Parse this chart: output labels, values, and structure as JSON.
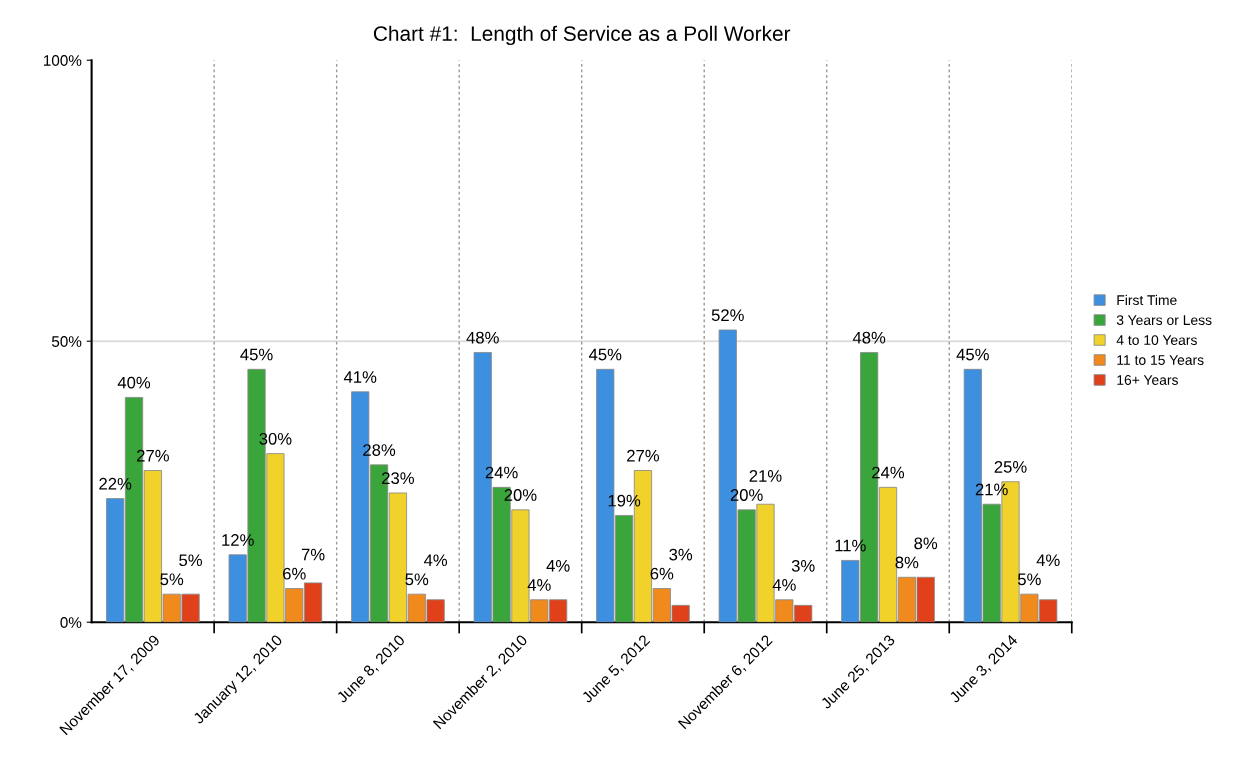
{
  "chart_data": {
    "type": "bar",
    "title": "Chart #1:  Length of Service as a Poll Worker",
    "categories": [
      "November 17, 2009",
      "January 12, 2010",
      "June 8, 2010",
      "November 2, 2010",
      "June 5, 2012",
      "November 6, 2012",
      "June 25, 2013",
      "June 3, 2014"
    ],
    "series": [
      {
        "name": "First Time",
        "color": "#3d8fe0",
        "values": [
          22,
          12,
          41,
          48,
          45,
          52,
          11,
          45
        ],
        "value_labels": [
          "22%",
          "12%",
          "41%",
          "48%",
          "45%",
          "52%",
          "11%",
          "45%"
        ]
      },
      {
        "name": "3 Years or Less",
        "color": "#3aa53a",
        "values": [
          40,
          45,
          28,
          24,
          19,
          20,
          48,
          21
        ],
        "value_labels": [
          "40%",
          "45%",
          "28%",
          "24%",
          "19%",
          "20%",
          "48%",
          "21%"
        ]
      },
      {
        "name": "4 to 10 Years",
        "color": "#f0d22a",
        "values": [
          27,
          30,
          23,
          20,
          27,
          21,
          24,
          25
        ],
        "value_labels": [
          "27%",
          "30%",
          "23%",
          "20%",
          "27%",
          "21%",
          "24%",
          "25%"
        ]
      },
      {
        "name": "11 to 15 Years",
        "color": "#f08a1c",
        "values": [
          5,
          6,
          5,
          4,
          6,
          4,
          8,
          5
        ],
        "value_labels": [
          "5%",
          "6%",
          "5%",
          "4%",
          "6%",
          "4%",
          "8%",
          "5%"
        ]
      },
      {
        "name": "16+ Years",
        "color": "#e0401a",
        "values": [
          5,
          7,
          4,
          4,
          3,
          3,
          8,
          4
        ],
        "value_labels": [
          "5%",
          "7%",
          "4%",
          "4%",
          "3%",
          "3%",
          "8%",
          "4%"
        ]
      }
    ],
    "ylim": [
      0,
      100
    ],
    "yticks": [
      {
        "value": 0,
        "label": "0%"
      },
      {
        "value": 50,
        "label": "50%"
      },
      {
        "value": 100,
        "label": "100%"
      }
    ],
    "ref_lines": [
      {
        "axis": "y",
        "value": 50,
        "color": "#dddddd",
        "line_style": "solid"
      }
    ],
    "grid": "x",
    "legend": "right"
  }
}
